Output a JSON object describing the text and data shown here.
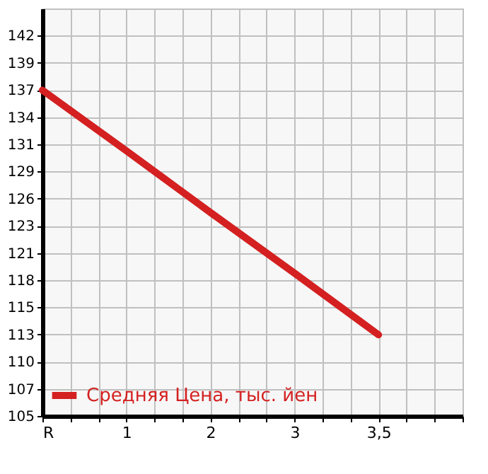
{
  "chart_data": {
    "type": "line",
    "categories": [
      "R",
      "1",
      "2",
      "3",
      "3,5"
    ],
    "series": [
      {
        "name": "Средняя Цена, тыс. йен",
        "color": "#d42020",
        "values": [
          136.5,
          130.6,
          124.6,
          118.7,
          112.7
        ]
      }
    ],
    "ylim": [
      104.8,
      144.45
    ],
    "yticks": [
      {
        "value": 104.8,
        "label": "105"
      },
      {
        "value": 107.44,
        "label": "107"
      },
      {
        "value": 110.09,
        "label": "110"
      },
      {
        "value": 112.73,
        "label": "113"
      },
      {
        "value": 115.37,
        "label": "115"
      },
      {
        "value": 118.02,
        "label": "118"
      },
      {
        "value": 120.66,
        "label": "121"
      },
      {
        "value": 123.3,
        "label": "123"
      },
      {
        "value": 125.94,
        "label": "126"
      },
      {
        "value": 128.59,
        "label": "129"
      },
      {
        "value": 131.23,
        "label": "131"
      },
      {
        "value": 133.87,
        "label": "134"
      },
      {
        "value": 136.52,
        "label": "137"
      },
      {
        "value": 139.16,
        "label": "139"
      },
      {
        "value": 141.8,
        "label": "142"
      }
    ],
    "grid": true,
    "legend": "bottom left",
    "line_style": "solid",
    "marker": "none"
  }
}
